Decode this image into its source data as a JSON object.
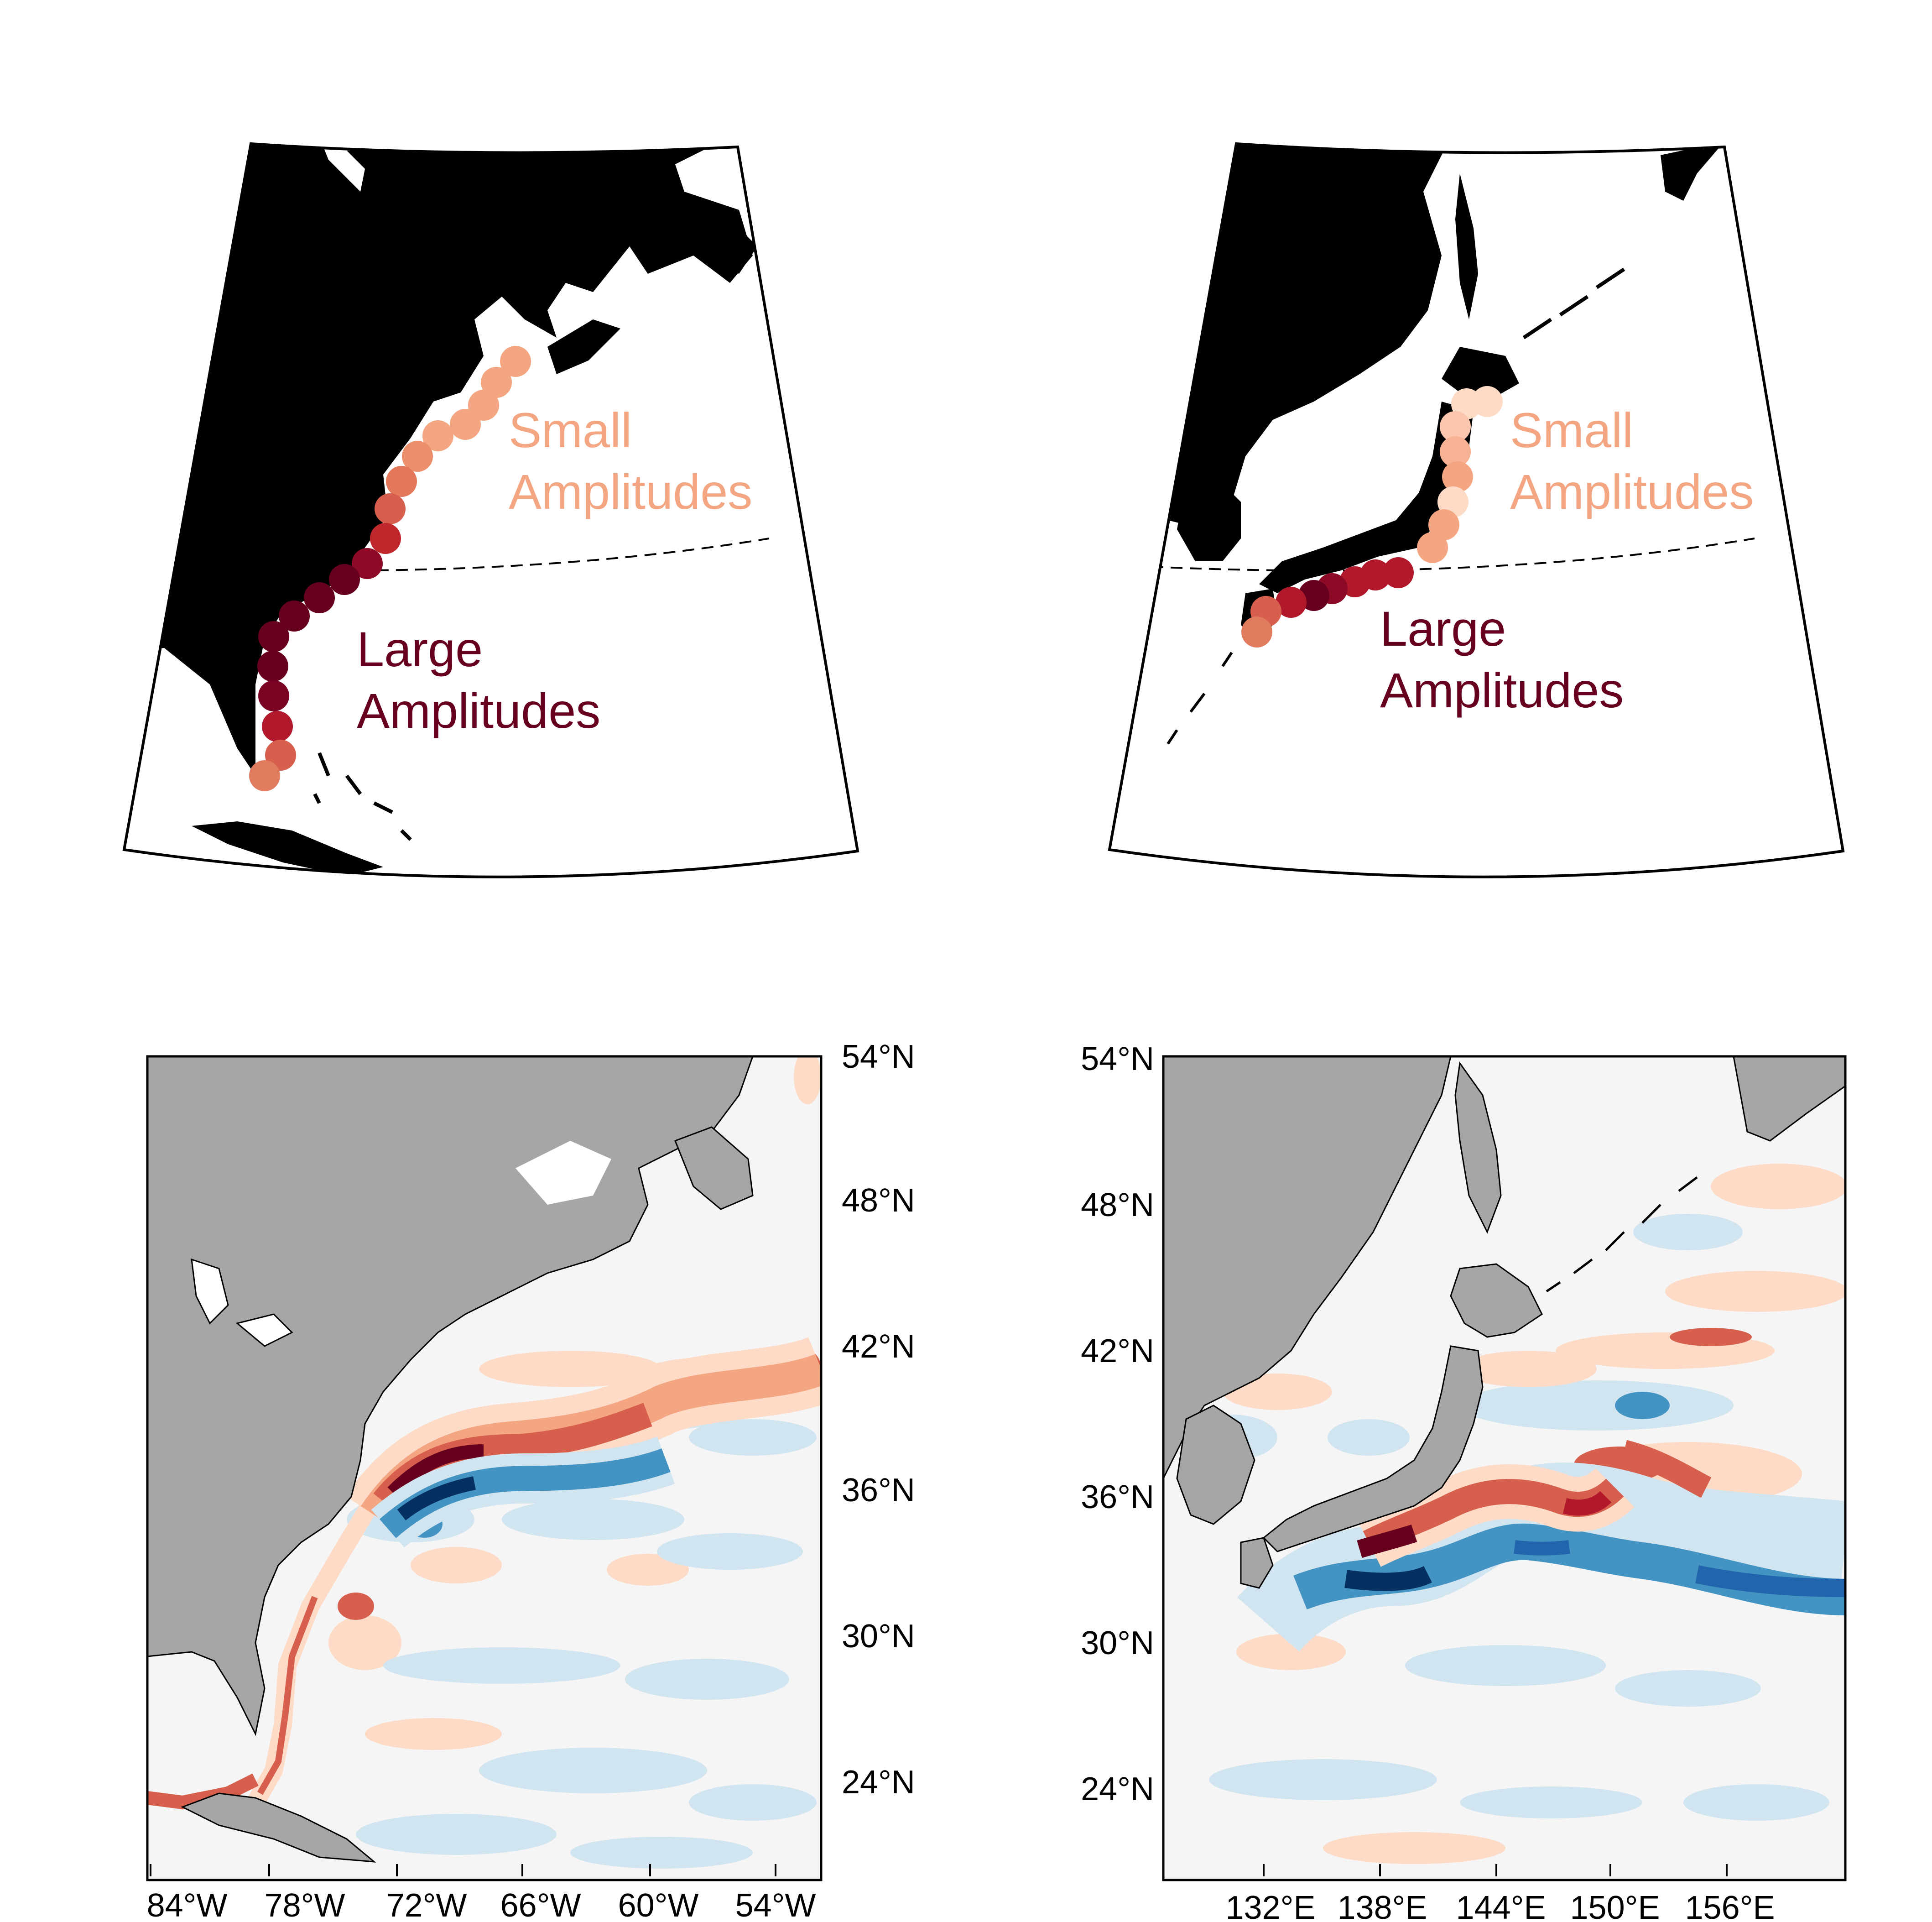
{
  "colors": {
    "land_top": "#000000",
    "land_bottom": "#a6a6a6",
    "ocean": "#f5f5f5",
    "small": "#f4a582",
    "large": "#67001f",
    "pos_strong": "#67001f",
    "pos_mid": "#d6604d",
    "pos_weak": "#fddbc7",
    "neg_strong": "#053061",
    "neg_mid": "#4393c3",
    "neg_weak": "#d1e5f0"
  },
  "panels": {
    "top_left": {
      "label_small": [
        "Small",
        "Amplitudes"
      ],
      "label_large": [
        "Large",
        "Amplitudes"
      ]
    },
    "top_right": {
      "label_small": [
        "Small",
        "Amplitudes"
      ],
      "label_large": [
        "Large",
        "Amplitudes"
      ]
    },
    "bottom_left": {
      "x_ticks": [
        "84°W",
        "78°W",
        "72°W",
        "66°W",
        "60°W",
        "54°W"
      ],
      "y_ticks": [
        "54°N",
        "48°N",
        "42°N",
        "36°N",
        "30°N",
        "24°N"
      ]
    },
    "bottom_right": {
      "x_ticks": [
        "132°E",
        "138°E",
        "144°E",
        "150°E",
        "156°E"
      ],
      "y_ticks": [
        "54°N",
        "48°N",
        "42°N",
        "36°N",
        "30°N",
        "24°N"
      ]
    }
  }
}
